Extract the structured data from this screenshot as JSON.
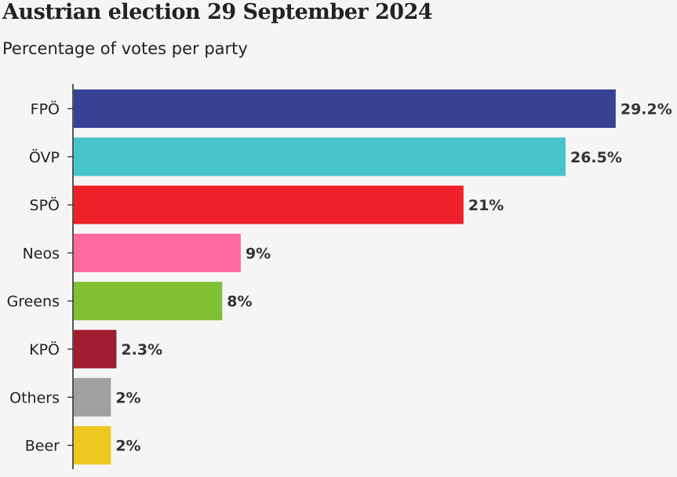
{
  "chart_data": {
    "type": "bar",
    "orientation": "horizontal",
    "title": "Austrian election 29 September 2024",
    "subtitle": "Percentage of votes per party",
    "xlabel": "",
    "ylabel": "",
    "grid": false,
    "categories": [
      "FPÖ",
      "ÖVP",
      "SPÖ",
      "Neos",
      "Greens",
      "KPÖ",
      "Others",
      "Beer"
    ],
    "values": [
      29.2,
      26.5,
      21,
      9,
      8,
      2.3,
      2,
      2
    ],
    "value_labels": [
      "29.2%",
      "26.5%",
      "21%",
      "9%",
      "8%",
      "2.3%",
      "2%",
      "2%"
    ],
    "colors": [
      "#364394",
      "#47c4cb",
      "#ee212b",
      "#ff69a0",
      "#80c033",
      "#a01c2f",
      "#a0a0a0",
      "#edc821"
    ]
  }
}
